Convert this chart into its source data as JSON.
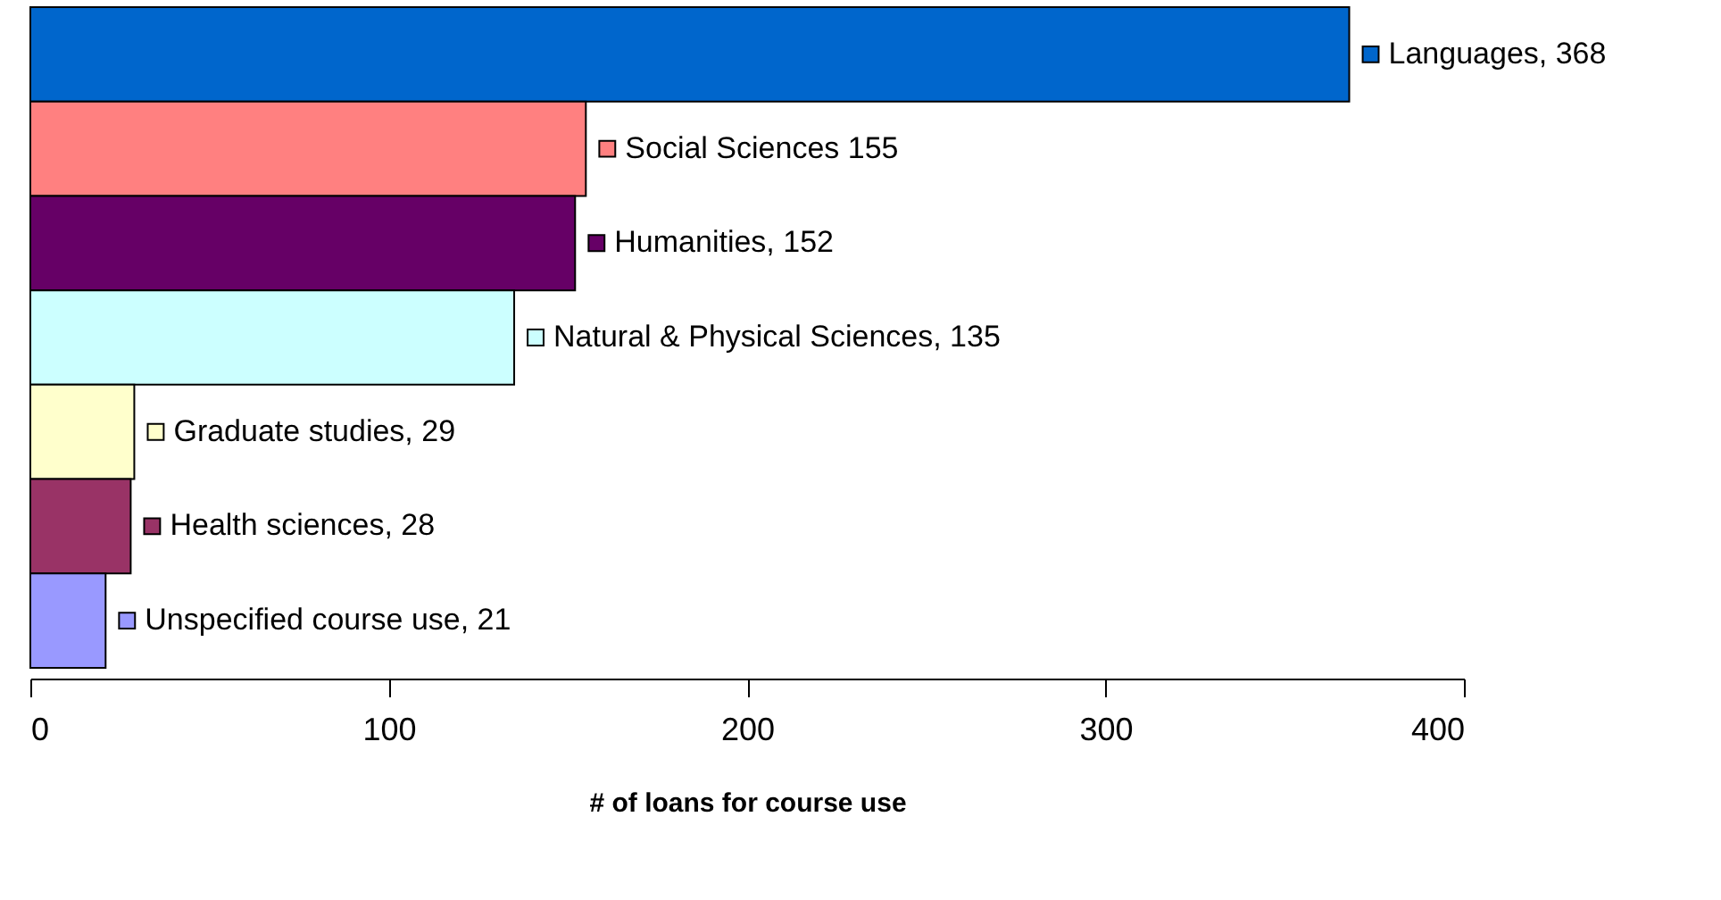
{
  "chart_data": {
    "type": "bar",
    "orientation": "horizontal",
    "xlabel": "# of loans for course use",
    "categories": [
      null,
      null,
      null,
      null,
      null,
      null,
      null
    ],
    "values": [
      368,
      155,
      152,
      135,
      29,
      28,
      21
    ],
    "colors": [
      "#0066cc",
      "#ff8080",
      "#660066",
      "#ccffff",
      "#ffffcc",
      "#993366",
      "#9999ff"
    ],
    "value_labels": [
      "Languages, 368",
      "Social Sciences 155",
      "Humanities, 152",
      "Natural & Physical Sciences, 135",
      "Graduate studies, 29",
      "Health sciences, 28",
      "Unspecified course use, 21"
    ],
    "xlim": [
      0,
      400
    ],
    "xticks": [
      0,
      100,
      200,
      300,
      400
    ],
    "grid": false,
    "legend": false
  }
}
